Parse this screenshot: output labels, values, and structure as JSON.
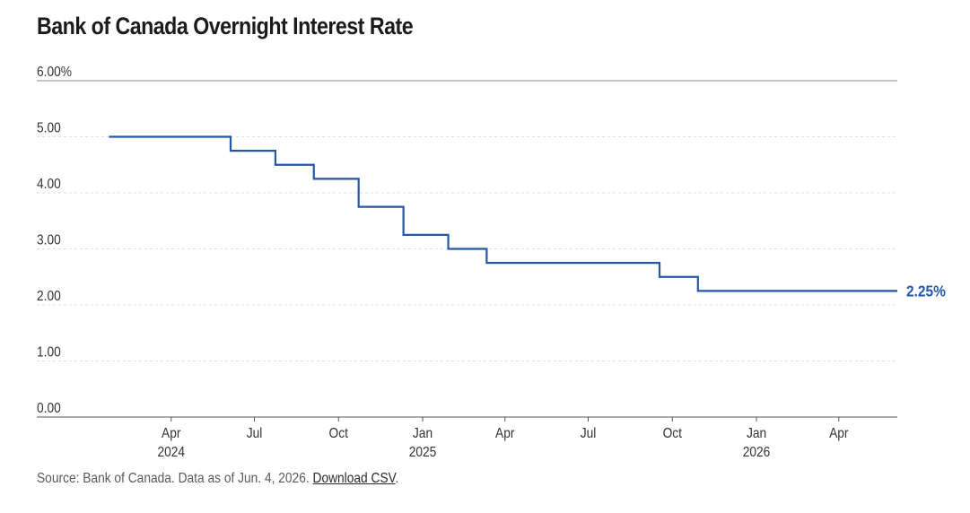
{
  "chart_data": {
    "type": "line",
    "step": true,
    "title": "Bank of Canada Overnight Interest Rate",
    "xlabel": "",
    "ylabel": "",
    "ylim": [
      0,
      6
    ],
    "xlim": [
      "2024-01-01",
      "2026-06-04"
    ],
    "y_ticks": [
      {
        "value": 6,
        "label": "6.00%"
      },
      {
        "value": 5,
        "label": "5.00"
      },
      {
        "value": 4,
        "label": "4.00"
      },
      {
        "value": 3,
        "label": "3.00"
      },
      {
        "value": 2,
        "label": "2.00"
      },
      {
        "value": 1,
        "label": "1.00"
      },
      {
        "value": 0,
        "label": "0.00"
      }
    ],
    "x_ticks": [
      {
        "date": "2024-04-01",
        "label": "Apr",
        "year": "2024"
      },
      {
        "date": "2024-07-01",
        "label": "Jul",
        "year": ""
      },
      {
        "date": "2024-10-01",
        "label": "Oct",
        "year": ""
      },
      {
        "date": "2025-01-01",
        "label": "Jan",
        "year": "2025"
      },
      {
        "date": "2025-04-01",
        "label": "Apr",
        "year": ""
      },
      {
        "date": "2025-07-01",
        "label": "Jul",
        "year": ""
      },
      {
        "date": "2025-10-01",
        "label": "Oct",
        "year": ""
      },
      {
        "date": "2026-01-01",
        "label": "Jan",
        "year": "2026"
      },
      {
        "date": "2026-04-01",
        "label": "Apr",
        "year": ""
      }
    ],
    "grid": true,
    "series": [
      {
        "color": "#2557a7",
        "points": [
          {
            "x": "2024-01-24",
            "y": 5.0
          },
          {
            "x": "2024-06-05",
            "y": 4.75
          },
          {
            "x": "2024-07-24",
            "y": 4.5
          },
          {
            "x": "2024-09-04",
            "y": 4.25
          },
          {
            "x": "2024-10-23",
            "y": 3.75
          },
          {
            "x": "2024-12-11",
            "y": 3.25
          },
          {
            "x": "2025-01-29",
            "y": 3.0
          },
          {
            "x": "2025-03-12",
            "y": 2.75
          },
          {
            "x": "2025-09-17",
            "y": 2.5
          },
          {
            "x": "2025-10-29",
            "y": 2.25
          },
          {
            "x": "2026-06-04",
            "y": 2.25
          }
        ],
        "end_label": "2.25%"
      }
    ]
  },
  "footer": {
    "source_text": "Source: Bank of Canada. Data as of Jun. 4, 2026. ",
    "download_label": "Download CSV",
    "trailing": "."
  }
}
